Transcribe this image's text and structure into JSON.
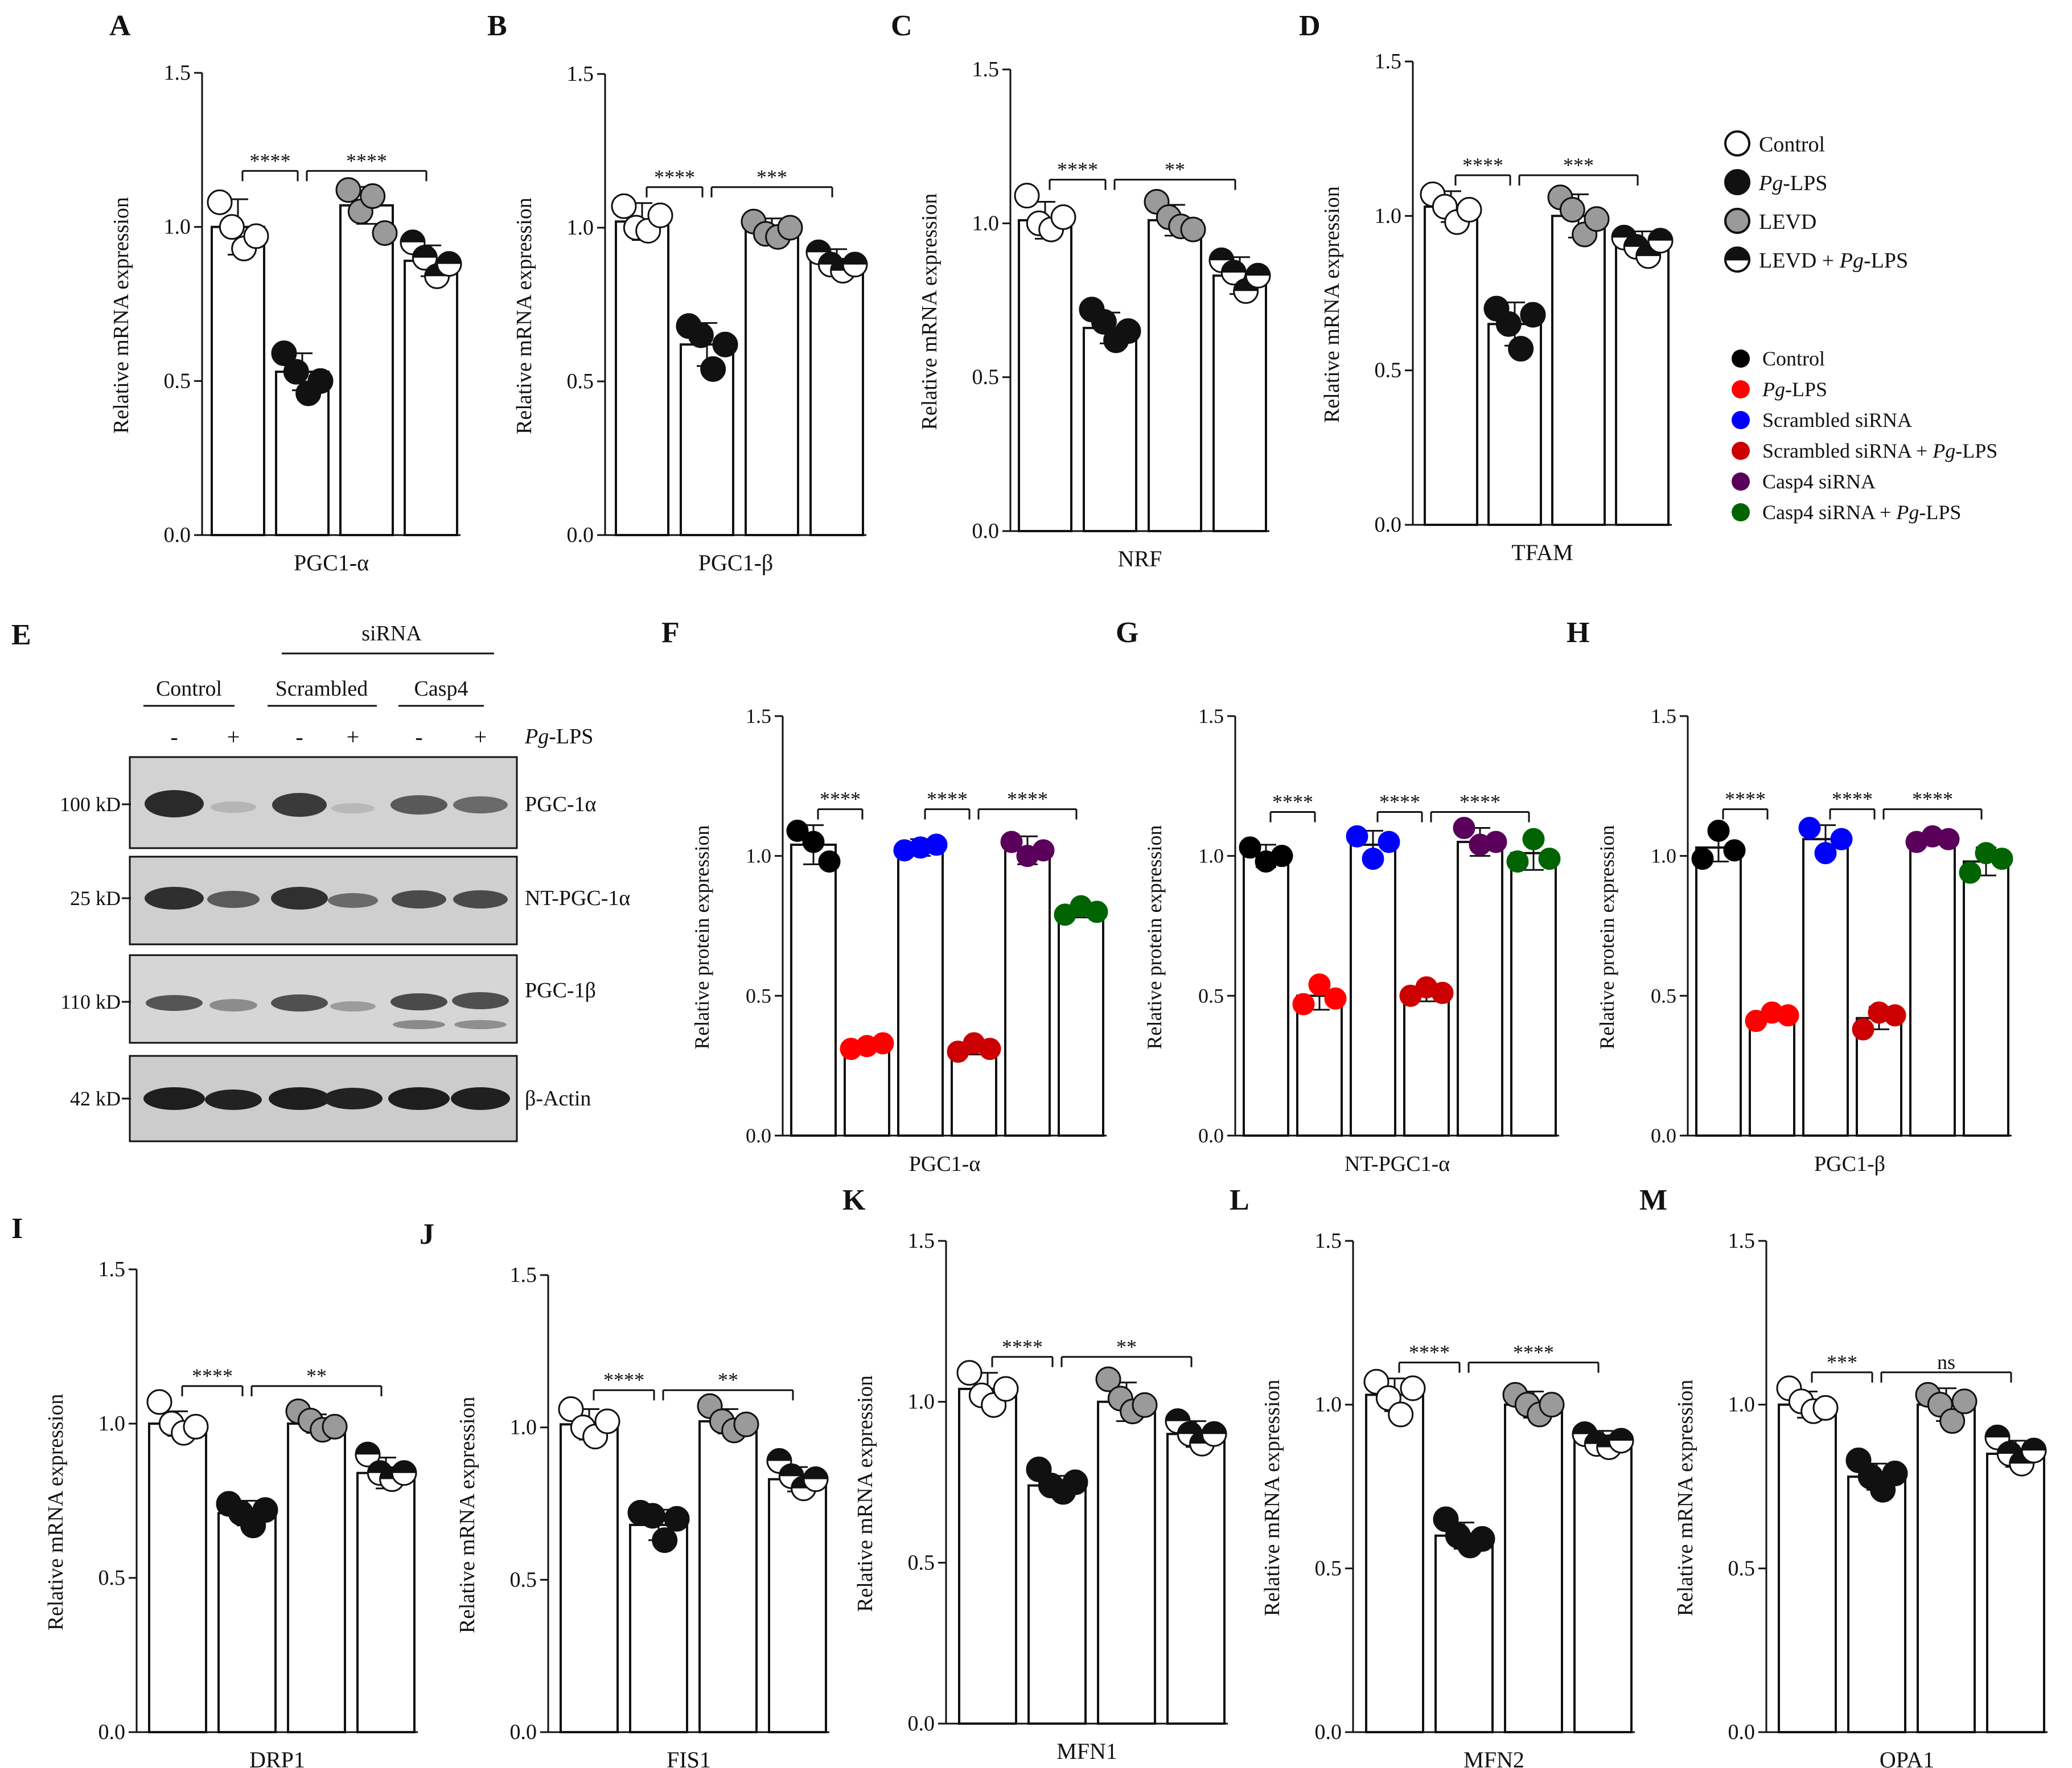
{
  "legends": {
    "mrna": [
      {
        "style": "open",
        "label": "Control"
      },
      {
        "style": "filled",
        "label_italic": "Pg",
        "label_rest": "-LPS"
      },
      {
        "style": "grey",
        "label": "LEVD"
      },
      {
        "style": "half",
        "label": "LEVD + ",
        "label_italic": "Pg",
        "label_rest": "-LPS"
      }
    ],
    "protein": [
      {
        "color": "#000000",
        "label": "Control"
      },
      {
        "color": "#ff0000",
        "label_italic": "Pg",
        "label_rest": "-LPS"
      },
      {
        "color": "#0000ff",
        "label": "Scrambled siRNA"
      },
      {
        "color": "#cc0000",
        "label": "Scrambled siRNA + ",
        "label_italic": "Pg",
        "label_rest": "-LPS"
      },
      {
        "color": "#5a005a",
        "label": "Casp4 siRNA"
      },
      {
        "color": "#006400",
        "label": "Casp4 siRNA + ",
        "label_italic": "Pg",
        "label_rest": "-LPS"
      }
    ]
  },
  "western": {
    "letter": "E",
    "sirna_label": "siRNA",
    "groups": [
      "Control",
      "Scrambled",
      "Casp4"
    ],
    "treatment_signs": [
      "-",
      "+",
      "-",
      "+",
      "-",
      "+"
    ],
    "treatment_label_italic": "Pg",
    "treatment_label_rest": "-LPS",
    "bands": [
      {
        "size": "100 kD",
        "name": "PGC-1α"
      },
      {
        "size": "25 kD",
        "name": "NT-PGC-1α"
      },
      {
        "size": "110 kD",
        "name": "PGC-1β"
      },
      {
        "size": "42 kD",
        "name": "β-Actin"
      }
    ]
  },
  "chart_data": [
    {
      "letter": "A",
      "type": "bar",
      "kind": "mrna",
      "xlabel": "PGC1-α",
      "ylabel": "Relative mRNA expression",
      "ylim": [
        0,
        1.5
      ],
      "ticks": [
        "0.0",
        "0.5",
        "1.0",
        "1.5"
      ],
      "categories": [
        "Control",
        "Pg-LPS",
        "LEVD",
        "LEVD + Pg-LPS"
      ],
      "values": [
        1.0,
        0.53,
        1.07,
        0.89
      ],
      "errors": [
        0.09,
        0.06,
        0.06,
        0.05
      ],
      "points": [
        [
          1.08,
          1.0,
          0.93,
          0.97
        ],
        [
          0.59,
          0.53,
          0.46,
          0.5
        ],
        [
          1.12,
          1.05,
          1.1,
          0.98
        ],
        [
          0.95,
          0.9,
          0.84,
          0.88
        ]
      ],
      "significance": [
        {
          "from": 0,
          "to": 1,
          "label": "****"
        },
        {
          "from": 1,
          "to": 3,
          "label": "****"
        }
      ]
    },
    {
      "letter": "B",
      "type": "bar",
      "kind": "mrna",
      "xlabel": "PGC1-β",
      "ylabel": "Relative mRNA expression",
      "ylim": [
        0,
        1.5
      ],
      "ticks": [
        "0.0",
        "0.5",
        "1.0",
        "1.5"
      ],
      "categories": [
        "Control",
        "Pg-LPS",
        "LEVD",
        "LEVD + Pg-LPS"
      ],
      "values": [
        1.02,
        0.62,
        1.0,
        0.89
      ],
      "errors": [
        0.06,
        0.07,
        0.03,
        0.04
      ],
      "points": [
        [
          1.07,
          1.0,
          0.99,
          1.04
        ],
        [
          0.68,
          0.65,
          0.54,
          0.62
        ],
        [
          1.02,
          0.98,
          0.97,
          1.0
        ],
        [
          0.92,
          0.88,
          0.86,
          0.88
        ]
      ],
      "significance": [
        {
          "from": 0,
          "to": 1,
          "label": "****"
        },
        {
          "from": 1,
          "to": 3,
          "label": "***"
        }
      ]
    },
    {
      "letter": "C",
      "type": "bar",
      "kind": "mrna",
      "xlabel": "NRF",
      "ylabel": "Relative mRNA expression",
      "ylim": [
        0,
        1.5
      ],
      "ticks": [
        "0.0",
        "0.5",
        "1.0",
        "1.5"
      ],
      "categories": [
        "Control",
        "Pg-LPS",
        "LEVD",
        "LEVD + Pg-LPS"
      ],
      "values": [
        1.01,
        0.66,
        1.01,
        0.83
      ],
      "errors": [
        0.06,
        0.05,
        0.05,
        0.06
      ],
      "points": [
        [
          1.09,
          1.0,
          0.98,
          1.02
        ],
        [
          0.72,
          0.68,
          0.62,
          0.65
        ],
        [
          1.07,
          1.02,
          0.99,
          0.98
        ],
        [
          0.88,
          0.84,
          0.78,
          0.83
        ]
      ],
      "significance": [
        {
          "from": 0,
          "to": 1,
          "label": "****"
        },
        {
          "from": 1,
          "to": 3,
          "label": "**"
        }
      ]
    },
    {
      "letter": "D",
      "type": "bar",
      "kind": "mrna",
      "xlabel": "TFAM",
      "ylabel": "Relative mRNA expression",
      "ylim": [
        0,
        1.5
      ],
      "ticks": [
        "0.0",
        "0.5",
        "1.0",
        "1.5"
      ],
      "categories": [
        "Control",
        "Pg-LPS",
        "LEVD",
        "LEVD + Pg-LPS"
      ],
      "values": [
        1.03,
        0.65,
        1.0,
        0.91
      ],
      "errors": [
        0.05,
        0.07,
        0.07,
        0.04
      ],
      "points": [
        [
          1.07,
          1.03,
          0.98,
          1.02
        ],
        [
          0.7,
          0.65,
          0.57,
          0.68
        ],
        [
          1.06,
          1.02,
          0.94,
          0.99
        ],
        [
          0.93,
          0.9,
          0.87,
          0.92
        ]
      ],
      "significance": [
        {
          "from": 0,
          "to": 1,
          "label": "****"
        },
        {
          "from": 1,
          "to": 3,
          "label": "***"
        }
      ]
    },
    {
      "letter": "F",
      "type": "bar",
      "kind": "protein",
      "xlabel": "PGC1-α",
      "ylabel": "Relative protein expression",
      "ylim": [
        0,
        1.5
      ],
      "ticks": [
        "0.0",
        "0.5",
        "1.0",
        "1.5"
      ],
      "categories": [
        "Control",
        "Pg-LPS",
        "Scrambled siRNA",
        "Scrambled siRNA + Pg-LPS",
        "Casp4 siRNA",
        "Casp4 siRNA + Pg-LPS"
      ],
      "values": [
        1.04,
        0.32,
        1.03,
        0.31,
        1.02,
        0.8
      ],
      "errors": [
        0.07,
        0.01,
        0.03,
        0.02,
        0.05,
        0.02
      ],
      "points": [
        [
          1.09,
          1.05,
          0.98
        ],
        [
          0.31,
          0.32,
          0.33
        ],
        [
          1.02,
          1.03,
          1.04
        ],
        [
          0.3,
          0.33,
          0.31
        ],
        [
          1.05,
          1.0,
          1.02
        ],
        [
          0.79,
          0.82,
          0.8
        ]
      ],
      "significance": [
        {
          "from": 0,
          "to": 1,
          "label": "****"
        },
        {
          "from": 2,
          "to": 3,
          "label": "****"
        },
        {
          "from": 3,
          "to": 5,
          "label": "****"
        }
      ]
    },
    {
      "letter": "G",
      "type": "bar",
      "kind": "protein",
      "xlabel": "NT-PGC1-α",
      "ylabel": "Relative protein expression",
      "ylim": [
        0,
        1.5
      ],
      "ticks": [
        "0.0",
        "0.5",
        "1.0",
        "1.5"
      ],
      "categories": [
        "Control",
        "Pg-LPS",
        "Scrambled siRNA",
        "Scrambled siRNA + Pg-LPS",
        "Casp4 siRNA",
        "Casp4 siRNA + Pg-LPS"
      ],
      "values": [
        1.0,
        0.5,
        1.04,
        0.51,
        1.05,
        1.01
      ],
      "errors": [
        0.04,
        0.05,
        0.05,
        0.03,
        0.05,
        0.06
      ],
      "points": [
        [
          1.03,
          0.98,
          1.0
        ],
        [
          0.47,
          0.54,
          0.49
        ],
        [
          1.07,
          0.99,
          1.05
        ],
        [
          0.5,
          0.53,
          0.51
        ],
        [
          1.1,
          1.04,
          1.05
        ],
        [
          0.98,
          1.06,
          0.99
        ]
      ],
      "significance": [
        {
          "from": 0,
          "to": 1,
          "label": "****"
        },
        {
          "from": 2,
          "to": 3,
          "label": "****"
        },
        {
          "from": 3,
          "to": 5,
          "label": "****"
        }
      ]
    },
    {
      "letter": "H",
      "type": "bar",
      "kind": "protein",
      "xlabel": "PGC1-β",
      "ylabel": "Relative protein expression",
      "ylim": [
        0,
        1.5
      ],
      "ticks": [
        "0.0",
        "0.5",
        "1.0",
        "1.5"
      ],
      "categories": [
        "Control",
        "Pg-LPS",
        "Scrambled siRNA",
        "Scrambled siRNA + Pg-LPS",
        "Casp4 siRNA",
        "Casp4 siRNA + Pg-LPS"
      ],
      "values": [
        1.03,
        0.43,
        1.06,
        0.42,
        1.06,
        0.98
      ],
      "errors": [
        0.05,
        0.02,
        0.05,
        0.04,
        0.01,
        0.05
      ],
      "points": [
        [
          0.99,
          1.09,
          1.02
        ],
        [
          0.41,
          0.44,
          0.43
        ],
        [
          1.1,
          1.01,
          1.06
        ],
        [
          0.38,
          0.44,
          0.43
        ],
        [
          1.05,
          1.07,
          1.06
        ],
        [
          0.94,
          1.01,
          0.99
        ]
      ],
      "significance": [
        {
          "from": 0,
          "to": 1,
          "label": "****"
        },
        {
          "from": 2,
          "to": 3,
          "label": "****"
        },
        {
          "from": 3,
          "to": 5,
          "label": "****"
        }
      ]
    },
    {
      "letter": "I",
      "type": "bar",
      "kind": "mrna",
      "xlabel": "DRP1",
      "ylabel": "Relative mRNA expression",
      "ylim": [
        0,
        1.5
      ],
      "ticks": [
        "0.0",
        "0.5",
        "1.0",
        "1.5"
      ],
      "categories": [
        "Control",
        "Pg-LPS",
        "LEVD",
        "LEVD + Pg-LPS"
      ],
      "values": [
        1.0,
        0.71,
        1.0,
        0.84
      ],
      "errors": [
        0.04,
        0.04,
        0.03,
        0.05
      ],
      "points": [
        [
          1.07,
          1.0,
          0.97,
          0.99
        ],
        [
          0.74,
          0.71,
          0.67,
          0.72
        ],
        [
          1.04,
          1.01,
          0.98,
          0.99
        ],
        [
          0.9,
          0.84,
          0.82,
          0.84
        ]
      ],
      "significance": [
        {
          "from": 0,
          "to": 1,
          "label": "****"
        },
        {
          "from": 1,
          "to": 3,
          "label": "**"
        }
      ]
    },
    {
      "letter": "J",
      "type": "bar",
      "kind": "mrna",
      "xlabel": "FIS1",
      "ylabel": "Relative mRNA expression",
      "ylim": [
        0,
        1.5
      ],
      "ticks": [
        "0.0",
        "0.5",
        "1.0",
        "1.5"
      ],
      "categories": [
        "Control",
        "Pg-LPS",
        "LEVD",
        "LEVD + Pg-LPS"
      ],
      "values": [
        1.01,
        0.68,
        1.02,
        0.83
      ],
      "errors": [
        0.05,
        0.05,
        0.04,
        0.04
      ],
      "points": [
        [
          1.06,
          1.0,
          0.97,
          1.02
        ],
        [
          0.72,
          0.71,
          0.63,
          0.7
        ],
        [
          1.07,
          1.02,
          0.99,
          1.01
        ],
        [
          0.89,
          0.84,
          0.8,
          0.83
        ]
      ],
      "significance": [
        {
          "from": 0,
          "to": 1,
          "label": "****"
        },
        {
          "from": 1,
          "to": 3,
          "label": "**"
        }
      ]
    },
    {
      "letter": "K",
      "type": "bar",
      "kind": "mrna",
      "xlabel": "MFN1",
      "ylabel": "Relative mRNA expression",
      "ylim": [
        0,
        1.5
      ],
      "ticks": [
        "0.0",
        "0.5",
        "1.0",
        "1.5"
      ],
      "categories": [
        "Control",
        "Pg-LPS",
        "LEVD",
        "LEVD + Pg-LPS"
      ],
      "values": [
        1.04,
        0.74,
        1.0,
        0.9
      ],
      "errors": [
        0.05,
        0.03,
        0.06,
        0.04
      ],
      "points": [
        [
          1.09,
          1.02,
          0.99,
          1.04
        ],
        [
          0.79,
          0.74,
          0.72,
          0.75
        ],
        [
          1.07,
          1.01,
          0.97,
          0.99
        ],
        [
          0.94,
          0.9,
          0.87,
          0.9
        ]
      ],
      "significance": [
        {
          "from": 0,
          "to": 1,
          "label": "****"
        },
        {
          "from": 1,
          "to": 3,
          "label": "**"
        }
      ]
    },
    {
      "letter": "L",
      "type": "bar",
      "kind": "mrna",
      "xlabel": "MFN2",
      "ylabel": "Relative mRNA expression",
      "ylim": [
        0,
        1.5
      ],
      "ticks": [
        "0.0",
        "0.5",
        "1.0",
        "1.5"
      ],
      "categories": [
        "Control",
        "Pg-LPS",
        "LEVD",
        "LEVD + Pg-LPS"
      ],
      "values": [
        1.03,
        0.6,
        1.0,
        0.89
      ],
      "errors": [
        0.05,
        0.04,
        0.04,
        0.03
      ],
      "points": [
        [
          1.07,
          1.02,
          0.97,
          1.05
        ],
        [
          0.65,
          0.6,
          0.57,
          0.59
        ],
        [
          1.03,
          1.0,
          0.97,
          1.0
        ],
        [
          0.91,
          0.88,
          0.87,
          0.89
        ]
      ],
      "significance": [
        {
          "from": 0,
          "to": 1,
          "label": "****"
        },
        {
          "from": 1,
          "to": 3,
          "label": "****"
        }
      ]
    },
    {
      "letter": "M",
      "type": "bar",
      "kind": "mrna",
      "xlabel": "OPA1",
      "ylabel": "Relative mRNA expression",
      "ylim": [
        0,
        1.5
      ],
      "ticks": [
        "0.0",
        "0.5",
        "1.0",
        "1.5"
      ],
      "categories": [
        "Control",
        "Pg-LPS",
        "LEVD",
        "LEVD + Pg-LPS"
      ],
      "values": [
        1.0,
        0.78,
        1.0,
        0.85
      ],
      "errors": [
        0.04,
        0.04,
        0.05,
        0.04
      ],
      "points": [
        [
          1.05,
          1.01,
          0.98,
          0.99
        ],
        [
          0.83,
          0.78,
          0.74,
          0.79
        ],
        [
          1.03,
          1.0,
          0.95,
          1.01
        ],
        [
          0.9,
          0.85,
          0.82,
          0.86
        ]
      ],
      "significance": [
        {
          "from": 0,
          "to": 1,
          "label": "***"
        },
        {
          "from": 1,
          "to": 3,
          "label": "ns"
        }
      ]
    }
  ]
}
